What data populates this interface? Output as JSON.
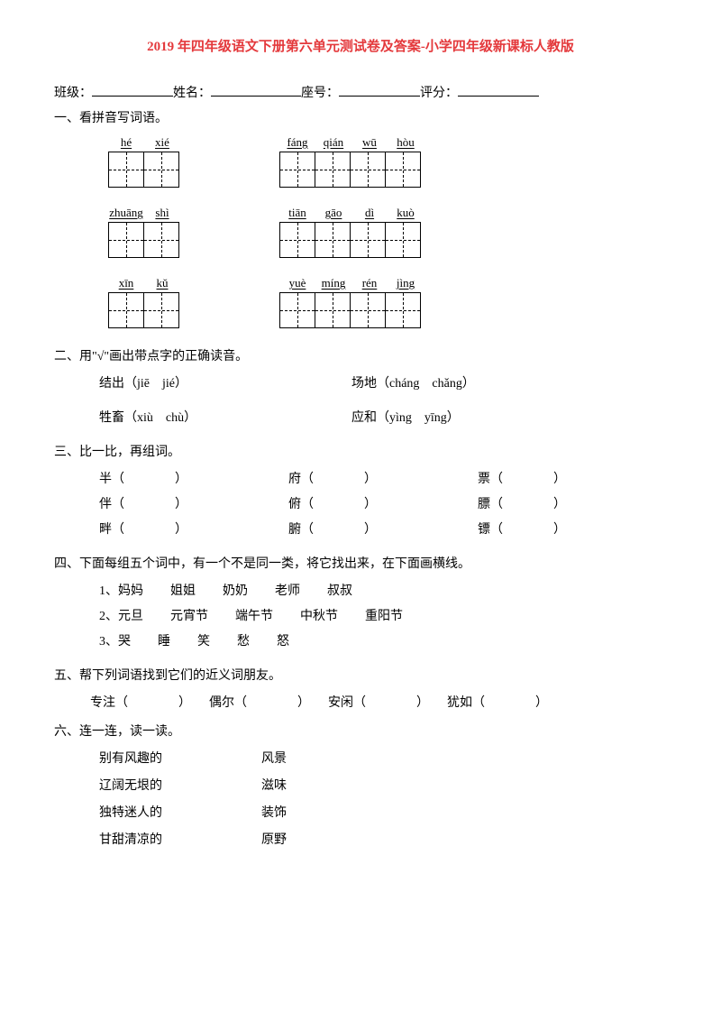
{
  "title": "2019 年四年级语文下册第六单元测试卷及答案-小学四年级新课标人教版",
  "title_color": "#e4393c",
  "header": {
    "class_label": "班级：",
    "name_label": "姓名：",
    "seat_label": "座号：",
    "score_label": "评分："
  },
  "q1": {
    "title": "一、看拼音写词语。",
    "rows": [
      {
        "left": [
          "hé",
          "xié"
        ],
        "right": [
          "fáng",
          "qián",
          "wū",
          "hòu"
        ]
      },
      {
        "left": [
          "zhuāng",
          "shì"
        ],
        "right": [
          "tiān",
          "gāo",
          "dì",
          "kuò"
        ]
      },
      {
        "left": [
          "xīn",
          "kǔ"
        ],
        "right": [
          "yuè",
          "míng",
          "rén",
          "jìng"
        ]
      }
    ]
  },
  "q2": {
    "title": "二、用\"√\"画出带点字的正确读音。",
    "items": [
      {
        "left": "结出（jiē　jié）",
        "right": "场地（cháng　chǎng）"
      },
      {
        "left": "牲畜（xiù　chù）",
        "right": "应和（yìng　yīng）"
      }
    ]
  },
  "q3": {
    "title": "三、比一比，再组词。",
    "rows": [
      [
        "半",
        "府",
        "票"
      ],
      [
        "伴",
        "俯",
        "膘"
      ],
      [
        "畔",
        "腑",
        "镖"
      ]
    ]
  },
  "q4": {
    "title": "四、下面每组五个词中，有一个不是同一类，将它找出来，在下面画横线。",
    "rows": [
      [
        "1、妈妈",
        "姐姐",
        "奶奶",
        "老师",
        "叔叔"
      ],
      [
        "2、元旦",
        "元宵节",
        "端午节",
        "中秋节",
        "重阳节"
      ],
      [
        "3、哭",
        "睡",
        "笑",
        "愁",
        "怒"
      ]
    ]
  },
  "q5": {
    "title": "五、帮下列词语找到它们的近义词朋友。",
    "items": [
      "专注",
      "偶尔",
      "安闲",
      "犹如"
    ]
  },
  "q6": {
    "title": "六、连一连，读一读。",
    "rows": [
      [
        "别有风趣的",
        "风景"
      ],
      [
        "辽阔无垠的",
        "滋味"
      ],
      [
        "独特迷人的",
        "装饰"
      ],
      [
        "甘甜清凉的",
        "原野"
      ]
    ]
  }
}
